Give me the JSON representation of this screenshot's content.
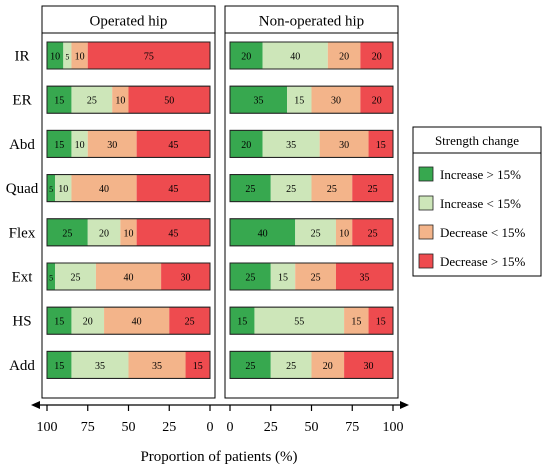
{
  "chart_data": {
    "type": "bar",
    "xlabel": "Proportion of patients (%)",
    "categories": [
      "IR",
      "ER",
      "Abd",
      "Quad",
      "Flex",
      "Ext",
      "HS",
      "Add"
    ],
    "legend": {
      "title": "Strength change",
      "placement": "right",
      "entries": [
        {
          "label": "Increase > 15%",
          "color": "#37a84f"
        },
        {
          "label": "Increase < 15%",
          "color": "#cde6b9"
        },
        {
          "label": "Decrease < 15%",
          "color": "#f3b48a"
        },
        {
          "label": "Decrease > 15%",
          "color": "#ee4b4f"
        }
      ]
    },
    "panels": [
      {
        "title": "Operated hip",
        "direction": "reversed",
        "ticks": [
          "100",
          "75",
          "50",
          "25",
          "0"
        ],
        "rows": [
          [
            10,
            5,
            10,
            75
          ],
          [
            15,
            25,
            10,
            50
          ],
          [
            15,
            10,
            30,
            45
          ],
          [
            5,
            10,
            40,
            45
          ],
          [
            25,
            20,
            10,
            45
          ],
          [
            5,
            25,
            40,
            30
          ],
          [
            15,
            20,
            40,
            25
          ],
          [
            15,
            35,
            35,
            15
          ]
        ]
      },
      {
        "title": "Non-operated hip",
        "direction": "normal",
        "ticks": [
          "0",
          "25",
          "50",
          "75",
          "100"
        ],
        "rows": [
          [
            20,
            40,
            20,
            20
          ],
          [
            35,
            15,
            30,
            20
          ],
          [
            20,
            35,
            30,
            15
          ],
          [
            25,
            25,
            25,
            25
          ],
          [
            40,
            25,
            10,
            25
          ],
          [
            25,
            15,
            25,
            35
          ],
          [
            15,
            55,
            15,
            15
          ],
          [
            25,
            25,
            20,
            30
          ]
        ]
      }
    ]
  }
}
